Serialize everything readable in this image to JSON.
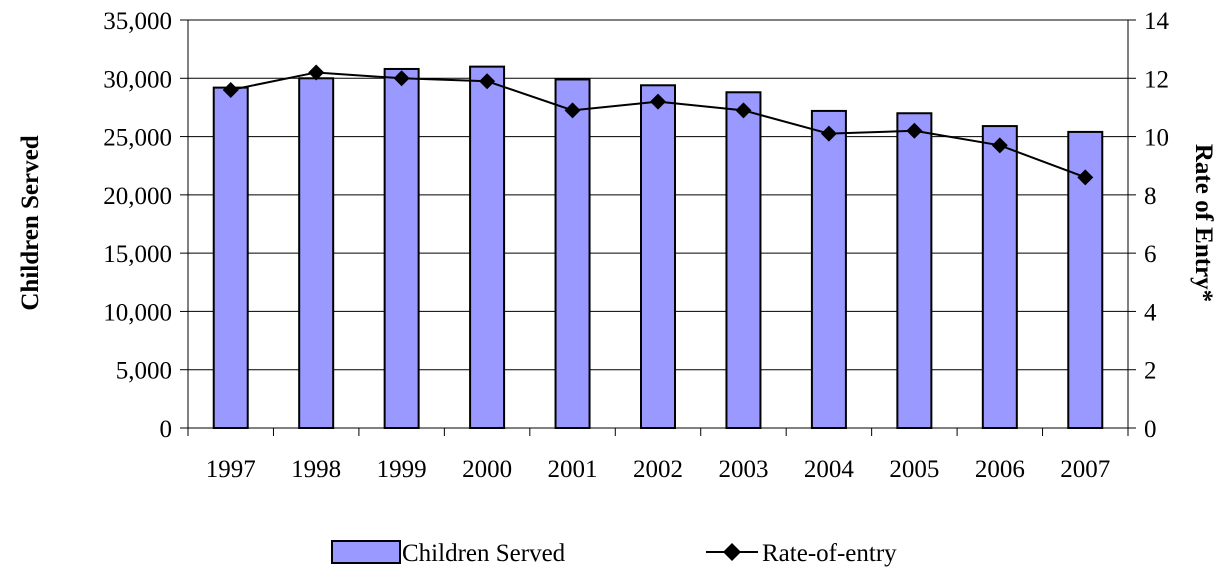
{
  "chart_data": {
    "type": "bar",
    "categories": [
      "1997",
      "1998",
      "1999",
      "2000",
      "2001",
      "2002",
      "2003",
      "2004",
      "2005",
      "2006",
      "2007"
    ],
    "series": [
      {
        "name": "Children Served",
        "type": "bar",
        "axis": "left",
        "color": "#9999ff",
        "values": [
          29200,
          30000,
          30800,
          31000,
          29900,
          29400,
          28800,
          27200,
          27000,
          25900,
          25400
        ]
      },
      {
        "name": "Rate-of-entry",
        "type": "line",
        "axis": "right",
        "color": "#000000",
        "marker": "diamond",
        "values": [
          11.6,
          12.2,
          12.0,
          11.9,
          10.9,
          11.2,
          10.9,
          10.1,
          10.2,
          9.7,
          8.6
        ]
      }
    ],
    "ylabel": "Children Served",
    "y2label": "Rate of Entry*",
    "xlabel": "",
    "title": "",
    "ylim": [
      0,
      35000
    ],
    "y2lim": [
      0,
      14
    ],
    "y_ticks": [
      "0",
      "5,000",
      "10,000",
      "15,000",
      "20,000",
      "25,000",
      "30,000",
      "35,000"
    ],
    "y2_ticks": [
      "0",
      "2",
      "4",
      "6",
      "8",
      "10",
      "12",
      "14"
    ],
    "grid": true,
    "legend_position": "bottom"
  }
}
